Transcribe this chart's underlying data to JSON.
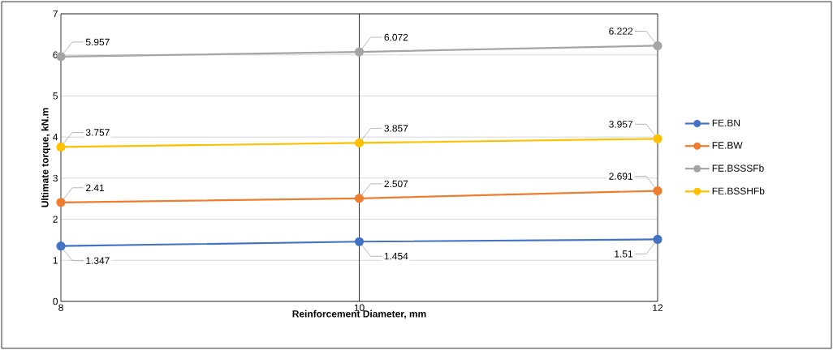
{
  "chart_data": {
    "type": "line",
    "xlabel": "Reinforcement Diameter, mm",
    "ylabel": "Ultimate torque, kN.m",
    "x": [
      8,
      10,
      12
    ],
    "xlim": [
      8,
      12
    ],
    "xticks": [
      8,
      10,
      12
    ],
    "ylim": [
      0,
      7
    ],
    "yticks": [
      0,
      1,
      2,
      3,
      4,
      5,
      6,
      7
    ],
    "grid": "y",
    "ref_lines": [
      {
        "axis": "x",
        "value": 10,
        "color": "#000000"
      }
    ],
    "legend": "right",
    "marker": "circle",
    "data_labels": true,
    "series": [
      {
        "name": "FE.BN",
        "color": "#4472c4",
        "values": [
          1.347,
          1.454,
          1.51
        ],
        "value_labels": [
          "1.347",
          "1.454",
          "1.51"
        ]
      },
      {
        "name": "FE.BW",
        "color": "#ed7d31",
        "values": [
          2.41,
          2.507,
          2.691
        ],
        "value_labels": [
          "2.41",
          "2.507",
          "2.691"
        ]
      },
      {
        "name": "FE.BSSSFb",
        "color": "#a5a5a5",
        "values": [
          5.957,
          6.072,
          6.222
        ],
        "value_labels": [
          "5.957",
          "6.072",
          "6.222"
        ]
      },
      {
        "name": "FE.BSSHFb",
        "color": "#ffc000",
        "values": [
          3.757,
          3.857,
          3.957
        ],
        "value_labels": [
          "3.757",
          "3.857",
          "3.957"
        ]
      }
    ]
  }
}
